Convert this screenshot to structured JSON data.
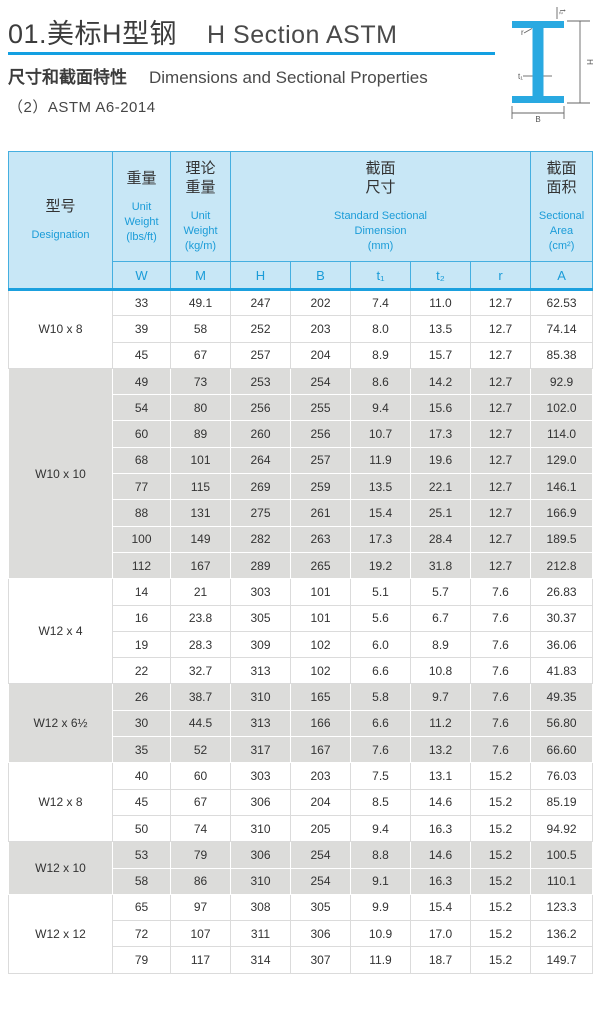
{
  "header": {
    "title_zh": "01.美标H型钢",
    "title_en": "H Section ASTM",
    "subtitle_zh": "尺寸和截面特性",
    "subtitle_en": "Dimensions and Sectional Properties",
    "spec": "（2）ASTM A6-2014"
  },
  "diagram": {
    "beam_color": "#29A9E1",
    "labels": {
      "H": "H",
      "B": "B",
      "t1": "t₁",
      "t2": "t₂",
      "r": "r"
    }
  },
  "colors": {
    "accent_blue": "#13A0E2",
    "header_bg": "#C8E7F6",
    "header_border": "#45AFE0",
    "header_text_blue": "#1B9CD8",
    "row_gray": "#DCDCDA"
  },
  "table": {
    "columns": {
      "designation": {
        "zh": "型号",
        "en": "Designation"
      },
      "weight": {
        "zh_lines": [
          "重量"
        ],
        "en_lines": [
          "Unit",
          "Weight",
          "(lbs/ft)"
        ]
      },
      "theoretical": {
        "zh_lines": [
          "理论",
          "重量"
        ],
        "en_lines": [
          "Unit",
          "Weight",
          "(kg/m)"
        ]
      },
      "sectional": {
        "zh_lines": [
          "截面",
          "尺寸"
        ],
        "en_lines": [
          "Standard Sectional",
          "Dimension",
          "(mm)"
        ]
      },
      "area": {
        "zh_lines": [
          "截面",
          "面积"
        ],
        "en_lines": [
          "Sectional",
          "Area",
          "(cm²)"
        ]
      }
    },
    "subheader": [
      "W",
      "M",
      "H",
      "B",
      "t₁",
      "t₂",
      "r",
      "A"
    ],
    "groups": [
      {
        "designation": "W10 x 8",
        "shaded": false,
        "rows": [
          [
            "33",
            "49.1",
            "247",
            "202",
            "7.4",
            "11.0",
            "12.7",
            "62.53"
          ],
          [
            "39",
            "58",
            "252",
            "203",
            "8.0",
            "13.5",
            "12.7",
            "74.14"
          ],
          [
            "45",
            "67",
            "257",
            "204",
            "8.9",
            "15.7",
            "12.7",
            "85.38"
          ]
        ]
      },
      {
        "designation": "W10 x 10",
        "shaded": true,
        "rows": [
          [
            "49",
            "73",
            "253",
            "254",
            "8.6",
            "14.2",
            "12.7",
            "92.9"
          ],
          [
            "54",
            "80",
            "256",
            "255",
            "9.4",
            "15.6",
            "12.7",
            "102.0"
          ],
          [
            "60",
            "89",
            "260",
            "256",
            "10.7",
            "17.3",
            "12.7",
            "114.0"
          ],
          [
            "68",
            "101",
            "264",
            "257",
            "11.9",
            "19.6",
            "12.7",
            "129.0"
          ],
          [
            "77",
            "115",
            "269",
            "259",
            "13.5",
            "22.1",
            "12.7",
            "146.1"
          ],
          [
            "88",
            "131",
            "275",
            "261",
            "15.4",
            "25.1",
            "12.7",
            "166.9"
          ],
          [
            "100",
            "149",
            "282",
            "263",
            "17.3",
            "28.4",
            "12.7",
            "189.5"
          ],
          [
            "112",
            "167",
            "289",
            "265",
            "19.2",
            "31.8",
            "12.7",
            "212.8"
          ]
        ]
      },
      {
        "designation": "W12 x 4",
        "shaded": false,
        "rows": [
          [
            "14",
            "21",
            "303",
            "101",
            "5.1",
            "5.7",
            "7.6",
            "26.83"
          ],
          [
            "16",
            "23.8",
            "305",
            "101",
            "5.6",
            "6.7",
            "7.6",
            "30.37"
          ],
          [
            "19",
            "28.3",
            "309",
            "102",
            "6.0",
            "8.9",
            "7.6",
            "36.06"
          ],
          [
            "22",
            "32.7",
            "313",
            "102",
            "6.6",
            "10.8",
            "7.6",
            "41.83"
          ]
        ]
      },
      {
        "designation": "W12 x 6½",
        "shaded": true,
        "rows": [
          [
            "26",
            "38.7",
            "310",
            "165",
            "5.8",
            "9.7",
            "7.6",
            "49.35"
          ],
          [
            "30",
            "44.5",
            "313",
            "166",
            "6.6",
            "11.2",
            "7.6",
            "56.80"
          ],
          [
            "35",
            "52",
            "317",
            "167",
            "7.6",
            "13.2",
            "7.6",
            "66.60"
          ]
        ]
      },
      {
        "designation": "W12 x 8",
        "shaded": false,
        "rows": [
          [
            "40",
            "60",
            "303",
            "203",
            "7.5",
            "13.1",
            "15.2",
            "76.03"
          ],
          [
            "45",
            "67",
            "306",
            "204",
            "8.5",
            "14.6",
            "15.2",
            "85.19"
          ],
          [
            "50",
            "74",
            "310",
            "205",
            "9.4",
            "16.3",
            "15.2",
            "94.92"
          ]
        ]
      },
      {
        "designation": "W12 x 10",
        "shaded": true,
        "rows": [
          [
            "53",
            "79",
            "306",
            "254",
            "8.8",
            "14.6",
            "15.2",
            "100.5"
          ],
          [
            "58",
            "86",
            "310",
            "254",
            "9.1",
            "16.3",
            "15.2",
            "110.1"
          ]
        ]
      },
      {
        "designation": "W12 x 12",
        "shaded": false,
        "rows": [
          [
            "65",
            "97",
            "308",
            "305",
            "9.9",
            "15.4",
            "15.2",
            "123.3"
          ],
          [
            "72",
            "107",
            "311",
            "306",
            "10.9",
            "17.0",
            "15.2",
            "136.2"
          ],
          [
            "79",
            "117",
            "314",
            "307",
            "11.9",
            "18.7",
            "15.2",
            "149.7"
          ]
        ]
      }
    ]
  }
}
